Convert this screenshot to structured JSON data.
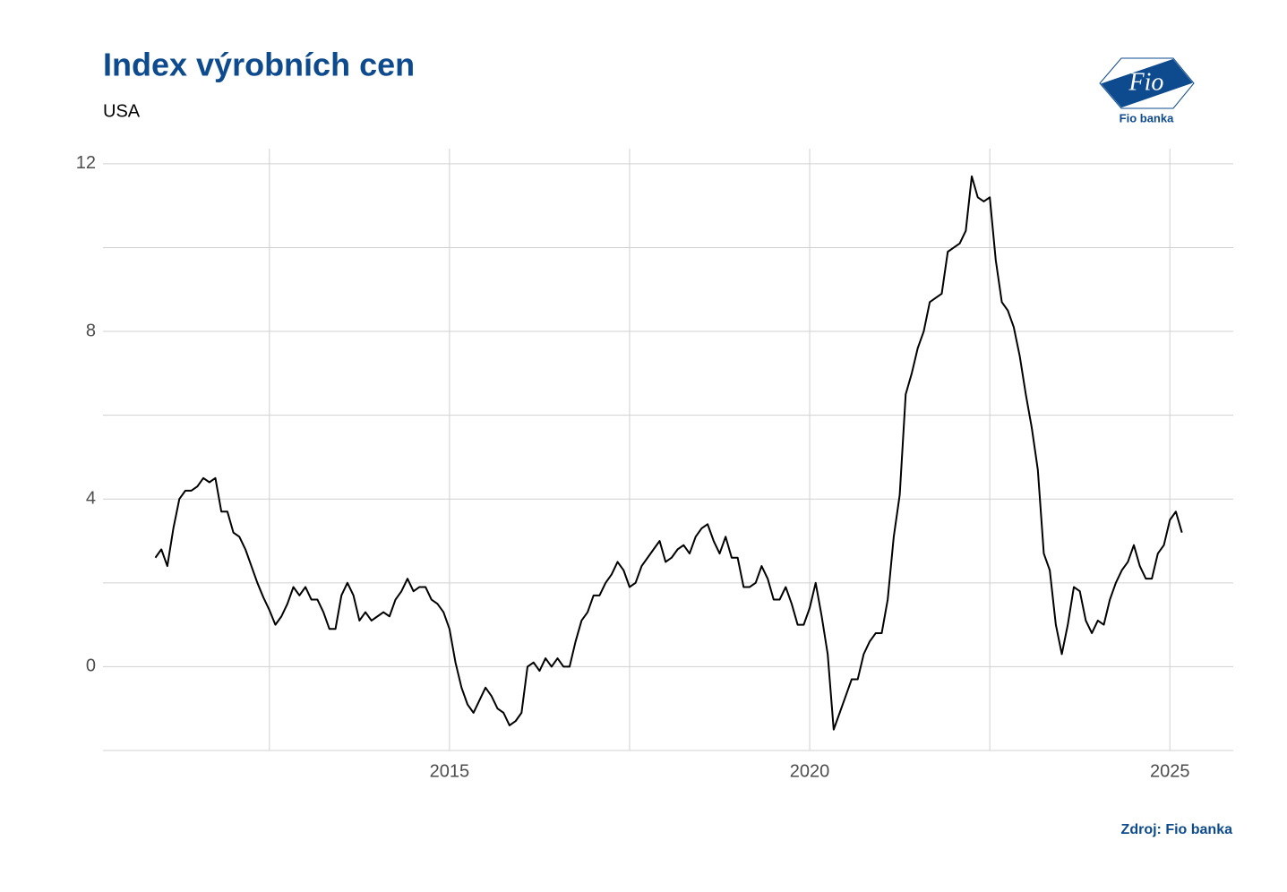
{
  "chart_data": {
    "type": "line",
    "title": "Index výrobních cen",
    "subtitle": "USA",
    "source": "Zdroj: Fio banka",
    "logo_mark": "Fio",
    "logo_caption": "Fio banka",
    "color": "#000000",
    "grid": true,
    "xlim": [
      2010.19,
      2025.88
    ],
    "xticks": [
      2015,
      2020,
      2025
    ],
    "ylim": [
      -2,
      12.36
    ],
    "yticks": [
      0,
      4,
      8,
      12
    ],
    "x": [
      2010.917,
      2011,
      2011.083,
      2011.167,
      2011.25,
      2011.333,
      2011.417,
      2011.5,
      2011.583,
      2011.667,
      2011.75,
      2011.833,
      2011.917,
      2012,
      2012.083,
      2012.167,
      2012.25,
      2012.333,
      2012.417,
      2012.5,
      2012.583,
      2012.667,
      2012.75,
      2012.833,
      2012.917,
      2013,
      2013.083,
      2013.167,
      2013.25,
      2013.333,
      2013.417,
      2013.5,
      2013.583,
      2013.667,
      2013.75,
      2013.833,
      2013.917,
      2014,
      2014.083,
      2014.167,
      2014.25,
      2014.333,
      2014.417,
      2014.5,
      2014.583,
      2014.667,
      2014.75,
      2014.833,
      2014.917,
      2015,
      2015.083,
      2015.167,
      2015.25,
      2015.333,
      2015.417,
      2015.5,
      2015.583,
      2015.667,
      2015.75,
      2015.833,
      2015.917,
      2016,
      2016.083,
      2016.167,
      2016.25,
      2016.333,
      2016.417,
      2016.5,
      2016.583,
      2016.667,
      2016.75,
      2016.833,
      2016.917,
      2017,
      2017.083,
      2017.167,
      2017.25,
      2017.333,
      2017.417,
      2017.5,
      2017.583,
      2017.667,
      2017.75,
      2017.833,
      2017.917,
      2018,
      2018.083,
      2018.167,
      2018.25,
      2018.333,
      2018.417,
      2018.5,
      2018.583,
      2018.667,
      2018.75,
      2018.833,
      2018.917,
      2019,
      2019.083,
      2019.167,
      2019.25,
      2019.333,
      2019.417,
      2019.5,
      2019.583,
      2019.667,
      2019.75,
      2019.833,
      2019.917,
      2020,
      2020.083,
      2020.167,
      2020.25,
      2020.333,
      2020.417,
      2020.5,
      2020.583,
      2020.667,
      2020.75,
      2020.833,
      2020.917,
      2021,
      2021.083,
      2021.167,
      2021.25,
      2021.333,
      2021.417,
      2021.5,
      2021.583,
      2021.667,
      2021.75,
      2021.833,
      2021.917,
      2022,
      2022.083,
      2022.167,
      2022.25,
      2022.333,
      2022.417,
      2022.5,
      2022.583,
      2022.667,
      2022.75,
      2022.833,
      2022.917,
      2023,
      2023.083,
      2023.167,
      2023.25,
      2023.333,
      2023.417,
      2023.5,
      2023.583,
      2023.667,
      2023.75,
      2023.833,
      2023.917,
      2024,
      2024.083,
      2024.167,
      2024.25,
      2024.333,
      2024.417,
      2024.5,
      2024.583,
      2024.667,
      2024.75,
      2024.833,
      2024.917,
      2025,
      2025.083,
      2025.167
    ],
    "values": [
      2.6,
      2.8,
      2.4,
      3.3,
      4.0,
      4.2,
      4.2,
      4.3,
      4.5,
      4.4,
      4.5,
      3.7,
      3.7,
      3.2,
      3.1,
      2.8,
      2.4,
      2.0,
      1.65,
      1.35,
      1.0,
      1.2,
      1.5,
      1.9,
      1.7,
      1.9,
      1.6,
      1.6,
      1.3,
      0.9,
      0.9,
      1.7,
      2.0,
      1.7,
      1.1,
      1.3,
      1.1,
      1.2,
      1.3,
      1.2,
      1.6,
      1.8,
      2.1,
      1.8,
      1.9,
      1.9,
      1.6,
      1.5,
      1.3,
      0.9,
      0.1,
      -0.5,
      -0.9,
      -1.1,
      -0.8,
      -0.5,
      -0.7,
      -1.0,
      -1.1,
      -1.4,
      -1.3,
      -1.1,
      0,
      0.1,
      -0.1,
      0.2,
      0,
      0.2,
      0,
      0,
      0.6,
      1.1,
      1.3,
      1.7,
      1.7,
      2.0,
      2.2,
      2.5,
      2.3,
      1.9,
      2.0,
      2.4,
      2.6,
      2.8,
      3.0,
      2.5,
      2.6,
      2.8,
      2.9,
      2.7,
      3.1,
      3.3,
      3.4,
      3.0,
      2.7,
      3.1,
      2.6,
      2.6,
      1.9,
      1.9,
      2.0,
      2.4,
      2.1,
      1.6,
      1.6,
      1.9,
      1.5,
      1.0,
      1.0,
      1.4,
      2.0,
      1.2,
      0.3,
      -1.5,
      -1.1,
      -0.7,
      -0.3,
      -0.3,
      0.3,
      0.6,
      0.8,
      0.8,
      1.6,
      3.1,
      4.1,
      6.5,
      7.0,
      7.6,
      8.0,
      8.7,
      8.8,
      8.9,
      9.9,
      10.0,
      10.1,
      10.4,
      11.7,
      11.2,
      11.1,
      11.2,
      9.7,
      8.7,
      8.5,
      8.1,
      7.4,
      6.5,
      5.7,
      4.7,
      2.7,
      2.3,
      1.0,
      0.3,
      1.0,
      1.9,
      1.8,
      1.1,
      0.8,
      1.1,
      1.0,
      1.6,
      2.0,
      2.3,
      2.5,
      2.9,
      2.4,
      2.1,
      2.1,
      2.7,
      2.9,
      3.5,
      3.7,
      3.2
    ]
  }
}
